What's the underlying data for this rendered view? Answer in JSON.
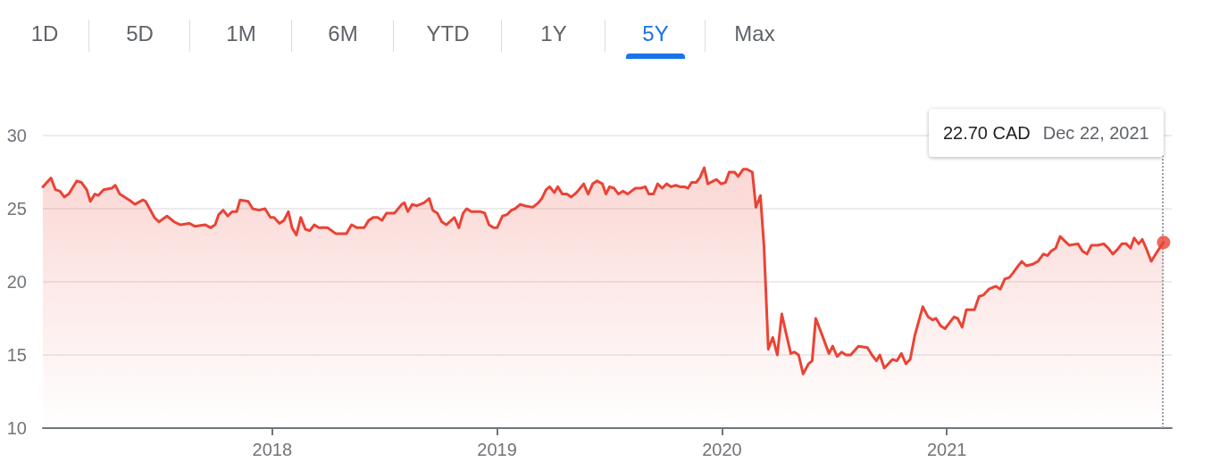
{
  "chart_data": {
    "type": "area",
    "xlim": [
      2016.98,
      2022.0
    ],
    "xticks": [
      2018,
      2019,
      2020,
      2021
    ],
    "ylim": [
      10,
      30
    ],
    "yticks": [
      10,
      15,
      20,
      25,
      30
    ],
    "grid": "y",
    "line_style": "solid",
    "annotations": [
      "1D",
      "5D",
      "1M",
      "6M",
      "YTD",
      "1Y",
      "5Y",
      "Max",
      "22.70 CAD",
      "Dec 22, 2021"
    ],
    "ref_lines": [
      {
        "axis": "x",
        "value": 2021.964,
        "color": "#9aa0a6",
        "line_style": "dotted"
      }
    ],
    "series": [
      {
        "color": "#ea4335",
        "x": [
          2016.98,
          2017.016,
          2017.036,
          2017.056,
          2017.075,
          2017.095,
          2017.131,
          2017.151,
          2017.175,
          2017.191,
          2017.211,
          2017.226,
          2017.25,
          2017.286,
          2017.302,
          2017.322,
          2017.373,
          2017.389,
          2017.425,
          2017.437,
          2017.476,
          2017.496,
          2017.532,
          2017.564,
          2017.592,
          2017.631,
          2017.655,
          2017.703,
          2017.726,
          2017.746,
          2017.762,
          2017.782,
          2017.802,
          2017.822,
          2017.842,
          2017.857,
          2017.893,
          2017.913,
          2017.941,
          2017.968,
          2017.992,
          2018.008,
          2018.032,
          2018.052,
          2018.072,
          2018.088,
          2018.107,
          2018.127,
          2018.147,
          2018.167,
          2018.187,
          2018.207,
          2018.246,
          2018.282,
          2018.33,
          2018.353,
          2018.377,
          2018.409,
          2018.429,
          2018.449,
          2018.469,
          2018.488,
          2018.508,
          2018.544,
          2018.576,
          2018.588,
          2018.603,
          2018.623,
          2018.643,
          2018.675,
          2018.698,
          2018.714,
          2018.734,
          2018.754,
          2018.774,
          2018.81,
          2018.83,
          2018.849,
          2018.865,
          2018.885,
          2018.925,
          2018.945,
          2018.964,
          2018.984,
          2019.0,
          2019.024,
          2019.044,
          2019.064,
          2019.08,
          2019.103,
          2019.123,
          2019.159,
          2019.183,
          2019.199,
          2019.218,
          2019.234,
          2019.254,
          2019.27,
          2019.29,
          2019.31,
          2019.33,
          2019.353,
          2019.385,
          2019.405,
          2019.425,
          2019.445,
          2019.468,
          2019.484,
          2019.5,
          2019.52,
          2019.54,
          2019.56,
          2019.58,
          2019.615,
          2019.639,
          2019.659,
          2019.675,
          2019.695,
          2019.714,
          2019.734,
          2019.754,
          2019.774,
          2019.794,
          2019.814,
          2019.834,
          2019.849,
          2019.865,
          2019.885,
          2019.901,
          2019.921,
          2019.937,
          2019.976,
          2019.996,
          2020.016,
          2020.032,
          2020.056,
          2020.072,
          2020.095,
          2020.111,
          2020.135,
          2020.151,
          2020.171,
          2020.187,
          2020.206,
          2020.226,
          2020.246,
          2020.266,
          2020.282,
          2020.306,
          2020.322,
          2020.341,
          2020.361,
          2020.385,
          2020.401,
          2020.417,
          2020.437,
          2020.476,
          2020.492,
          2020.512,
          2020.532,
          2020.552,
          2020.572,
          2020.607,
          2020.647,
          2020.667,
          2020.687,
          2020.702,
          2020.722,
          2020.758,
          2020.778,
          2020.798,
          2020.818,
          2020.837,
          2020.857,
          2020.893,
          2020.917,
          2020.937,
          2020.952,
          2020.972,
          2020.992,
          2021.012,
          2021.032,
          2021.048,
          2021.068,
          2021.087,
          2021.103,
          2021.123,
          2021.143,
          2021.163,
          2021.187,
          2021.218,
          2021.238,
          2021.258,
          2021.278,
          2021.294,
          2021.318,
          2021.333,
          2021.353,
          2021.381,
          2021.405,
          2021.429,
          2021.448,
          2021.464,
          2021.484,
          2021.504,
          2021.524,
          2021.544,
          2021.583,
          2021.603,
          2021.623,
          2021.643,
          2021.671,
          2021.698,
          2021.718,
          2021.738,
          2021.758,
          2021.778,
          2021.798,
          2021.817,
          2021.833,
          2021.853,
          2021.869,
          2021.889,
          2021.909,
          2021.937,
          2021.964
        ],
        "values": [
          26.5,
          27.1,
          26.3,
          26.2,
          25.8,
          26.0,
          26.9,
          26.8,
          26.3,
          25.5,
          26.0,
          25.9,
          26.3,
          26.4,
          26.6,
          26.0,
          25.5,
          25.3,
          25.6,
          25.5,
          24.4,
          24.1,
          24.5,
          24.1,
          23.9,
          24.0,
          23.8,
          23.9,
          23.7,
          23.9,
          24.6,
          24.9,
          24.5,
          24.8,
          24.8,
          25.6,
          25.5,
          25.0,
          24.9,
          25.0,
          24.4,
          24.4,
          24.0,
          24.2,
          24.8,
          23.7,
          23.2,
          24.4,
          23.6,
          23.5,
          23.9,
          23.7,
          23.7,
          23.3,
          23.3,
          23.9,
          23.7,
          23.7,
          24.2,
          24.4,
          24.4,
          24.2,
          24.7,
          24.7,
          25.3,
          25.4,
          24.8,
          25.3,
          25.2,
          25.4,
          25.7,
          24.9,
          24.7,
          24.1,
          23.9,
          24.4,
          23.7,
          24.7,
          25.0,
          24.8,
          24.8,
          24.7,
          23.9,
          23.7,
          23.7,
          24.5,
          24.6,
          24.9,
          25.0,
          25.3,
          25.2,
          25.1,
          25.4,
          25.7,
          26.3,
          26.5,
          26.1,
          26.5,
          26.0,
          26.0,
          25.8,
          26.1,
          26.7,
          26.0,
          26.7,
          26.9,
          26.7,
          26.0,
          26.5,
          26.4,
          26.0,
          26.2,
          26.0,
          26.4,
          26.4,
          26.5,
          26.0,
          26.0,
          26.7,
          26.4,
          26.7,
          26.5,
          26.6,
          26.5,
          26.5,
          26.4,
          26.8,
          26.8,
          27.1,
          27.8,
          26.7,
          27.0,
          26.7,
          26.8,
          27.5,
          27.5,
          27.2,
          27.7,
          27.7,
          27.5,
          25.1,
          25.9,
          22.4,
          15.4,
          16.2,
          15.0,
          17.8,
          16.7,
          15.1,
          15.2,
          15.0,
          13.7,
          14.4,
          14.6,
          17.5,
          16.7,
          15.1,
          15.6,
          14.9,
          15.2,
          15.0,
          15.0,
          15.6,
          15.5,
          15.0,
          14.6,
          15.0,
          14.1,
          14.7,
          14.6,
          15.1,
          14.4,
          14.7,
          16.3,
          18.3,
          17.6,
          17.4,
          17.5,
          17.0,
          16.8,
          17.2,
          17.6,
          17.5,
          16.9,
          18.1,
          18.1,
          18.1,
          19.0,
          19.1,
          19.5,
          19.7,
          19.5,
          20.2,
          20.3,
          20.6,
          21.1,
          21.4,
          21.1,
          21.2,
          21.4,
          21.9,
          21.8,
          22.1,
          22.3,
          23.1,
          22.8,
          22.5,
          22.6,
          22.1,
          21.9,
          22.5,
          22.5,
          22.6,
          22.3,
          21.9,
          22.2,
          22.6,
          22.6,
          22.3,
          23.0,
          22.6,
          22.9,
          22.2,
          21.4,
          22.1,
          22.7
        ]
      },
      {
        "type": "scatter",
        "color": "#ea4335",
        "x": [
          2021.964
        ],
        "values": [
          22.7
        ]
      }
    ]
  }
}
